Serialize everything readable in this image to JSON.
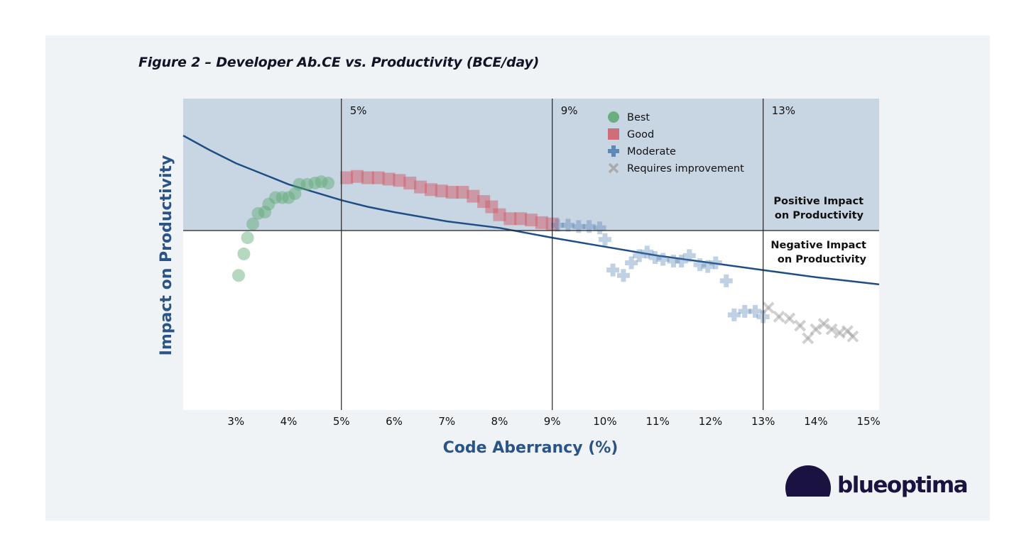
{
  "chart_data": {
    "type": "scatter",
    "title": "Figure 2 – Developer Ab.CE vs. Productivity (BCE/day)",
    "xlabel": "Code Aberrancy (%)",
    "ylabel": "Impact on Productivity",
    "xlim": [
      2.0,
      15.2
    ],
    "ylim": [
      -1.0,
      1.0
    ],
    "x_ticks": [
      3,
      4,
      5,
      6,
      7,
      8,
      9,
      10,
      11,
      12,
      13,
      14,
      15
    ],
    "x_tick_labels": [
      "3%",
      "4%",
      "5%",
      "6%",
      "7%",
      "8%",
      "9%",
      "10%",
      "11%",
      "12%",
      "13%",
      "14%",
      "15%"
    ],
    "thresholds": [
      {
        "x": 5,
        "label": "5%"
      },
      {
        "x": 9,
        "label": "9%"
      },
      {
        "x": 13,
        "label": "13%"
      }
    ],
    "zero_line": 0,
    "region_labels": {
      "positive": [
        "Positive Impact",
        "on Productivity"
      ],
      "negative": [
        "Negative Impact",
        "on Productivity"
      ]
    },
    "legend": {
      "position": "top-center"
    },
    "series": [
      {
        "name": "Best",
        "marker": "circle",
        "color": "#5aa86e",
        "points": [
          [
            3.05,
            -0.25
          ],
          [
            3.15,
            -0.13
          ],
          [
            3.22,
            -0.04
          ],
          [
            3.32,
            0.05
          ],
          [
            3.42,
            0.13
          ],
          [
            3.55,
            0.14
          ],
          [
            3.62,
            0.2
          ],
          [
            3.75,
            0.25
          ],
          [
            3.88,
            0.25
          ],
          [
            4.0,
            0.25
          ],
          [
            4.12,
            0.28
          ],
          [
            4.2,
            0.35
          ],
          [
            4.35,
            0.35
          ],
          [
            4.5,
            0.36
          ],
          [
            4.62,
            0.37
          ],
          [
            4.75,
            0.36
          ]
        ]
      },
      {
        "name": "Good",
        "marker": "square",
        "color": "#d05a68",
        "points": [
          [
            5.1,
            0.4
          ],
          [
            5.3,
            0.41
          ],
          [
            5.5,
            0.4
          ],
          [
            5.7,
            0.4
          ],
          [
            5.9,
            0.39
          ],
          [
            6.1,
            0.38
          ],
          [
            6.3,
            0.36
          ],
          [
            6.5,
            0.33
          ],
          [
            6.7,
            0.31
          ],
          [
            6.9,
            0.3
          ],
          [
            7.1,
            0.29
          ],
          [
            7.3,
            0.29
          ],
          [
            7.5,
            0.26
          ],
          [
            7.7,
            0.22
          ],
          [
            7.85,
            0.18
          ],
          [
            8.0,
            0.12
          ],
          [
            8.2,
            0.09
          ],
          [
            8.4,
            0.09
          ],
          [
            8.6,
            0.08
          ],
          [
            8.8,
            0.06
          ],
          [
            9.0,
            0.05
          ]
        ]
      },
      {
        "name": "Moderate",
        "marker": "plus",
        "color": "#4a7ab0",
        "points": [
          [
            9.1,
            0.04
          ],
          [
            9.3,
            0.04
          ],
          [
            9.5,
            0.03
          ],
          [
            9.7,
            0.03
          ],
          [
            9.9,
            0.02
          ],
          [
            10.0,
            -0.05
          ],
          [
            10.15,
            -0.22
          ],
          [
            10.35,
            -0.25
          ],
          [
            10.5,
            -0.18
          ],
          [
            10.65,
            -0.14
          ],
          [
            10.8,
            -0.12
          ],
          [
            10.95,
            -0.15
          ],
          [
            11.1,
            -0.16
          ],
          [
            11.3,
            -0.17
          ],
          [
            11.45,
            -0.17
          ],
          [
            11.6,
            -0.14
          ],
          [
            11.8,
            -0.19
          ],
          [
            11.95,
            -0.2
          ],
          [
            12.1,
            -0.18
          ],
          [
            12.3,
            -0.28
          ],
          [
            12.45,
            -0.47
          ],
          [
            12.65,
            -0.45
          ],
          [
            12.85,
            -0.45
          ],
          [
            13.0,
            -0.48
          ]
        ]
      },
      {
        "name": "Requires improvement",
        "marker": "x",
        "color": "#9a9a9a",
        "points": [
          [
            13.1,
            -0.43
          ],
          [
            13.3,
            -0.48
          ],
          [
            13.5,
            -0.49
          ],
          [
            13.7,
            -0.53
          ],
          [
            13.85,
            -0.6
          ],
          [
            14.0,
            -0.55
          ],
          [
            14.15,
            -0.52
          ],
          [
            14.3,
            -0.55
          ],
          [
            14.45,
            -0.57
          ],
          [
            14.6,
            -0.56
          ],
          [
            14.7,
            -0.59
          ]
        ]
      }
    ],
    "trend_curve": {
      "name": "trend",
      "color": "#1f4e85",
      "x": [
        2.0,
        2.5,
        3.0,
        3.5,
        4.0,
        4.5,
        5.0,
        5.5,
        6.0,
        7.0,
        8.0,
        9.0,
        10.0,
        11.0,
        12.0,
        13.0,
        14.0,
        15.2
      ],
      "y": [
        0.72,
        0.61,
        0.51,
        0.43,
        0.35,
        0.29,
        0.23,
        0.18,
        0.14,
        0.07,
        0.02,
        -0.04,
        -0.09,
        -0.14,
        -0.18,
        -0.22,
        -0.26,
        -0.3
      ]
    }
  },
  "logo": {
    "name": "blueoptima"
  }
}
